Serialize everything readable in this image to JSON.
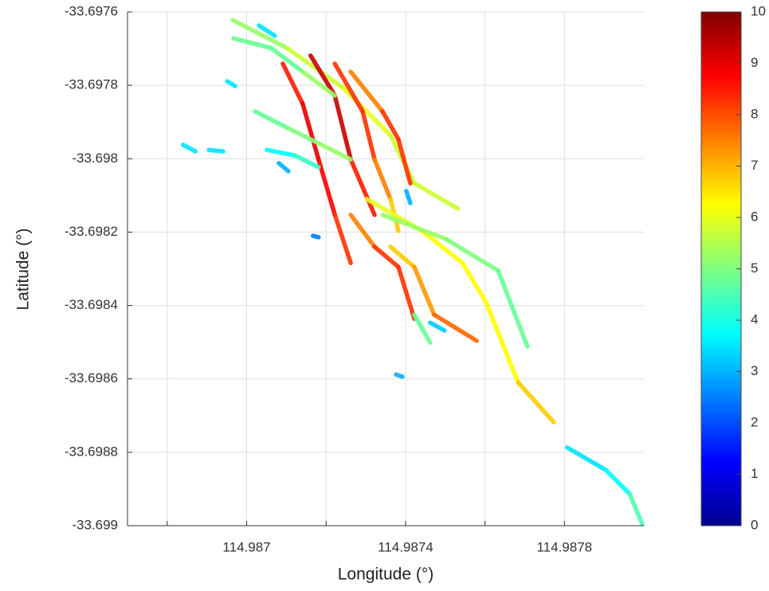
{
  "chart_data": {
    "type": "line",
    "colormap": "jet",
    "xlabel": "Longitude (°)",
    "ylabel": "Latitude (°)",
    "xlim": [
      114.9867,
      114.988
    ],
    "ylim": [
      -33.699,
      -33.6976
    ],
    "xticks": [
      {
        "value": 114.9868,
        "label": null
      },
      114.987,
      {
        "value": 114.9872,
        "label": null
      },
      114.9874,
      {
        "value": 114.9876,
        "label": null
      },
      114.9878
    ],
    "yticks": [
      -33.6976,
      -33.6978,
      -33.698,
      -33.6982,
      -33.6984,
      -33.6986,
      -33.6988,
      -33.699
    ],
    "grid": true,
    "clim": [
      0,
      10
    ],
    "cticks": [
      0,
      1,
      2,
      3,
      4,
      5,
      6,
      7,
      8,
      9,
      10
    ],
    "tracks": [
      {
        "x": [
          114.986965,
          114.987101,
          114.987242,
          114.987362,
          114.987422,
          114.987532
        ],
        "y": [
          -33.697622,
          -33.697698,
          -33.697806,
          -33.697936,
          -33.698067,
          -33.698136
        ],
        "values": [
          5,
          5.5,
          6,
          6,
          5.5,
          6
        ]
      },
      {
        "x": [
          114.987091,
          114.987141,
          114.987181,
          114.987222,
          114.987262
        ],
        "y": [
          -33.697741,
          -33.69785,
          -33.698002,
          -33.698153,
          -33.698284
        ],
        "values": [
          8,
          9,
          9,
          8.5,
          8
        ]
      },
      {
        "x": [
          114.987161,
          114.987222,
          114.987262,
          114.987322
        ],
        "y": [
          -33.697719,
          -33.697828,
          -33.698002,
          -33.698153
        ],
        "values": [
          9,
          9.5,
          9,
          8
        ]
      },
      {
        "x": [
          114.987222,
          114.987292,
          114.987322,
          114.987362,
          114.987382
        ],
        "y": [
          -33.697741,
          -33.697871,
          -33.698002,
          -33.69811,
          -33.698197
        ],
        "values": [
          8,
          8.5,
          8,
          7,
          6.5
        ]
      },
      {
        "x": [
          114.987262,
          114.987342,
          114.987382,
          114.987412
        ],
        "y": [
          -33.697763,
          -33.697871,
          -33.697947,
          -33.698067
        ],
        "values": [
          7,
          8,
          8.5,
          8
        ]
      },
      {
        "x": [
          114.987302,
          114.987442,
          114.987543,
          114.987603,
          114.987683,
          114.987773
        ],
        "y": [
          -33.69811,
          -33.698197,
          -33.698284,
          -33.698392,
          -33.698609,
          -33.698718
        ],
        "values": [
          6,
          6,
          6.5,
          6,
          6.5,
          7
        ]
      },
      {
        "x": [
          114.987342,
          114.987502,
          114.987633,
          114.987707
        ],
        "y": [
          -33.698153,
          -33.698219,
          -33.698305,
          -33.698512
        ],
        "values": [
          5.5,
          5,
          5,
          4.5
        ]
      },
      {
        "x": [
          114.987807,
          114.987904,
          114.987964,
          114.987996
        ],
        "y": [
          -33.698787,
          -33.698848,
          -33.698913,
          -33.698996
        ],
        "values": [
          3.5,
          3.5,
          4,
          5
        ]
      },
      {
        "x": [
          114.987262,
          114.987322,
          114.987382,
          114.987422
        ],
        "y": [
          -33.698153,
          -33.69824,
          -33.698295,
          -33.698436
        ],
        "values": [
          7,
          8,
          8.5,
          8
        ]
      },
      {
        "x": [
          114.987362,
          114.987422,
          114.987472,
          114.987579
        ],
        "y": [
          -33.69824,
          -33.698295,
          -33.698425,
          -33.698496
        ],
        "values": [
          6.5,
          7,
          7.5,
          8
        ]
      },
      {
        "x": [
          114.987422,
          114.987462
        ],
        "y": [
          -33.698425,
          -33.698501
        ],
        "values": [
          5,
          4.5
        ]
      },
      {
        "x": [
          114.987462,
          114.987498
        ],
        "y": [
          -33.698447,
          -33.698468
        ],
        "values": [
          3.5,
          3
        ]
      },
      {
        "x": [
          114.986967,
          114.987061,
          114.987141,
          114.987222
        ],
        "y": [
          -33.697672,
          -33.697698,
          -33.697763,
          -33.697828
        ],
        "values": [
          5,
          4.5,
          5,
          5.5
        ]
      },
      {
        "x": [
          114.987021,
          114.987101,
          114.987181,
          114.987262
        ],
        "y": [
          -33.697871,
          -33.697915,
          -33.697958,
          -33.698002
        ],
        "values": [
          4.5,
          5,
          5,
          5.5
        ]
      },
      {
        "x": [
          114.987051,
          114.987121,
          114.987181
        ],
        "y": [
          -33.697976,
          -33.697991,
          -33.698023
        ],
        "values": [
          3.5,
          4,
          4.5
        ]
      },
      {
        "x": [
          114.98684,
          114.986871
        ],
        "y": [
          -33.697962,
          -33.69798
        ],
        "values": [
          3.5,
          3.5
        ]
      },
      {
        "x": [
          114.986905,
          114.986941
        ],
        "y": [
          -33.697976,
          -33.69798
        ],
        "values": [
          3.5,
          3.5
        ]
      },
      {
        "x": [
          114.986951,
          114.986971
        ],
        "y": [
          -33.697789,
          -33.697802
        ],
        "values": [
          3.5,
          3.5
        ]
      },
      {
        "x": [
          114.987167,
          114.987181
        ],
        "y": [
          -33.69821,
          -33.698214
        ],
        "values": [
          2.5,
          2.5
        ]
      },
      {
        "x": [
          114.987376,
          114.987392
        ],
        "y": [
          -33.698588,
          -33.698594
        ],
        "values": [
          3,
          3
        ]
      },
      {
        "x": [
          114.987402,
          114.987412
        ],
        "y": [
          -33.698088,
          -33.698121
        ],
        "values": [
          3,
          3
        ]
      },
      {
        "x": [
          114.987031,
          114.987071
        ],
        "y": [
          -33.697637,
          -33.697665
        ],
        "values": [
          3.5,
          3.5
        ]
      },
      {
        "x": [
          114.987081,
          114.987105
        ],
        "y": [
          -33.698012,
          -33.698034
        ],
        "values": [
          3,
          3
        ]
      }
    ]
  }
}
